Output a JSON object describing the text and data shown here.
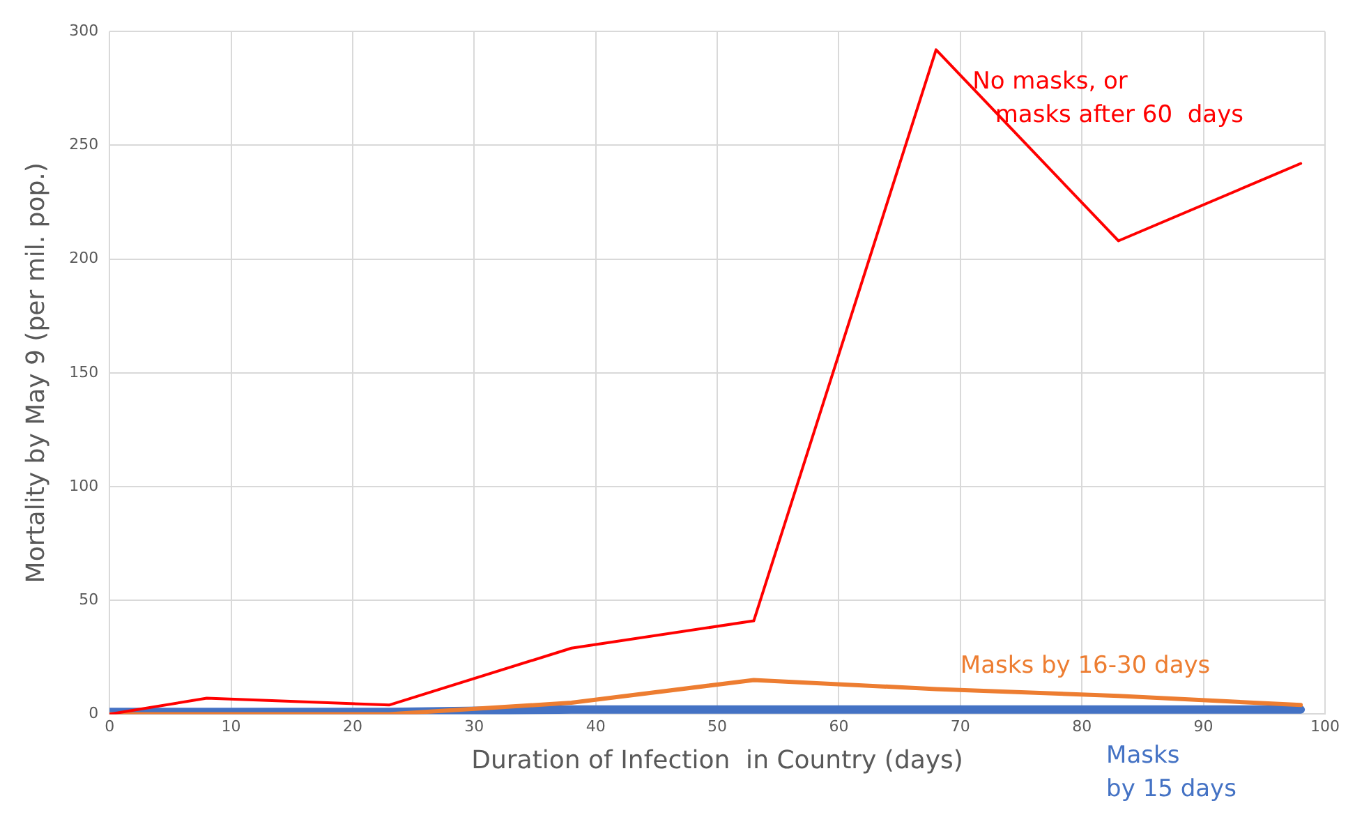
{
  "chart_data": {
    "type": "line",
    "xlabel": "Duration of Infection  in Country (days)",
    "ylabel": "Mortality by May 9 (per mil. pop.)",
    "xlim": [
      0,
      100
    ],
    "xticks": [
      0,
      10,
      20,
      30,
      40,
      50,
      60,
      70,
      80,
      90,
      100
    ],
    "ylim": [
      0,
      300
    ],
    "yticks": [
      0,
      50,
      100,
      150,
      200,
      250,
      300
    ],
    "grid": true,
    "legend": false,
    "marker": "none",
    "line_style": "solid",
    "series": [
      {
        "name": "No masks, or\n   masks after 60  days",
        "color": "#ff0000",
        "x": [
          0,
          8,
          23,
          38,
          53,
          68,
          83,
          98
        ],
        "values": [
          0,
          7,
          4,
          29,
          41,
          292,
          208,
          242
        ]
      },
      {
        "name": "Masks by 16-30 days",
        "color": "#ed7d31",
        "x": [
          0,
          8,
          23,
          38,
          53,
          68,
          83,
          98
        ],
        "values": [
          0,
          0,
          0,
          5,
          15,
          11,
          8,
          4
        ]
      },
      {
        "name": "Masks\nby 15 days",
        "color": "#4472c4",
        "x": [
          0,
          8,
          23,
          38,
          53,
          68,
          83,
          98
        ],
        "values": [
          1,
          1,
          1,
          2,
          2,
          2,
          2,
          2
        ]
      }
    ]
  }
}
